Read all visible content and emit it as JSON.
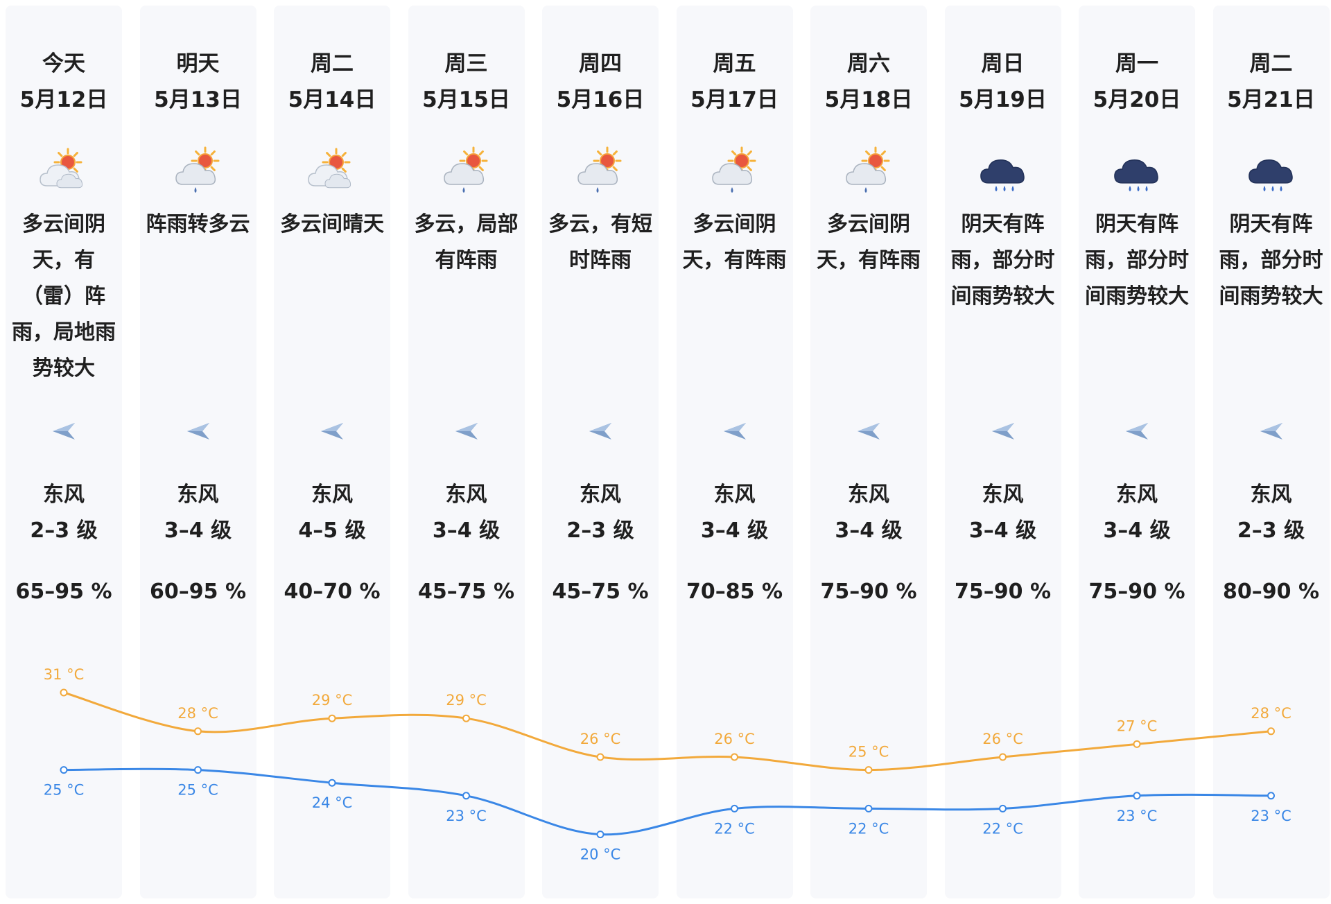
{
  "colors": {
    "high": "#f2a93b",
    "low": "#3a87e6",
    "column_bg": "#f7f8fb"
  },
  "days": [
    {
      "name": "今天",
      "date": "5月12日",
      "icon": "partly-cloudy-sun-icon",
      "desc": "多云间阴天，有（雷）阵雨，局地雨势较大",
      "wind_dir": "东风",
      "wind_level": "2–3 级",
      "humidity": "65–95 %",
      "high": 31,
      "low": 25
    },
    {
      "name": "明天",
      "date": "5月13日",
      "icon": "cloud-sun-rain-icon",
      "desc": "阵雨转多云",
      "wind_dir": "东风",
      "wind_level": "3–4 级",
      "humidity": "60–95 %",
      "high": 28,
      "low": 25
    },
    {
      "name": "周二",
      "date": "5月14日",
      "icon": "partly-cloudy-sun-icon",
      "desc": "多云间晴天",
      "wind_dir": "东风",
      "wind_level": "4–5 级",
      "humidity": "40–70 %",
      "high": 29,
      "low": 24
    },
    {
      "name": "周三",
      "date": "5月15日",
      "icon": "cloud-sun-rain-icon",
      "desc": "多云，局部有阵雨",
      "wind_dir": "东风",
      "wind_level": "3–4 级",
      "humidity": "45–75 %",
      "high": 29,
      "low": 23
    },
    {
      "name": "周四",
      "date": "5月16日",
      "icon": "cloud-sun-rain-icon",
      "desc": "多云，有短时阵雨",
      "wind_dir": "东风",
      "wind_level": "2–3 级",
      "humidity": "45–75 %",
      "high": 26,
      "low": 20
    },
    {
      "name": "周五",
      "date": "5月17日",
      "icon": "cloud-sun-rain-icon",
      "desc": "多云间阴天，有阵雨",
      "wind_dir": "东风",
      "wind_level": "3–4 级",
      "humidity": "70–85 %",
      "high": 26,
      "low": 22
    },
    {
      "name": "周六",
      "date": "5月18日",
      "icon": "cloud-sun-rain-icon",
      "desc": "多云间阴天，有阵雨",
      "wind_dir": "东风",
      "wind_level": "3–4 级",
      "humidity": "75–90 %",
      "high": 25,
      "low": 22
    },
    {
      "name": "周日",
      "date": "5月19日",
      "icon": "dark-cloud-rain-icon",
      "desc": "阴天有阵雨，部分时间雨势较大",
      "wind_dir": "东风",
      "wind_level": "3–4 级",
      "humidity": "75–90 %",
      "high": 26,
      "low": 22
    },
    {
      "name": "周一",
      "date": "5月20日",
      "icon": "dark-cloud-rain-icon",
      "desc": "阴天有阵雨，部分时间雨势较大",
      "wind_dir": "东风",
      "wind_level": "3–4 级",
      "humidity": "75–90 %",
      "high": 27,
      "low": 23
    },
    {
      "name": "周二",
      "date": "5月21日",
      "icon": "dark-cloud-rain-icon",
      "desc": "阴天有阵雨，部分时间雨势较大",
      "wind_dir": "东风",
      "wind_level": "2–3 级",
      "humidity": "80–90 %",
      "high": 28,
      "low": 23
    }
  ],
  "temperature_unit": "°C"
}
